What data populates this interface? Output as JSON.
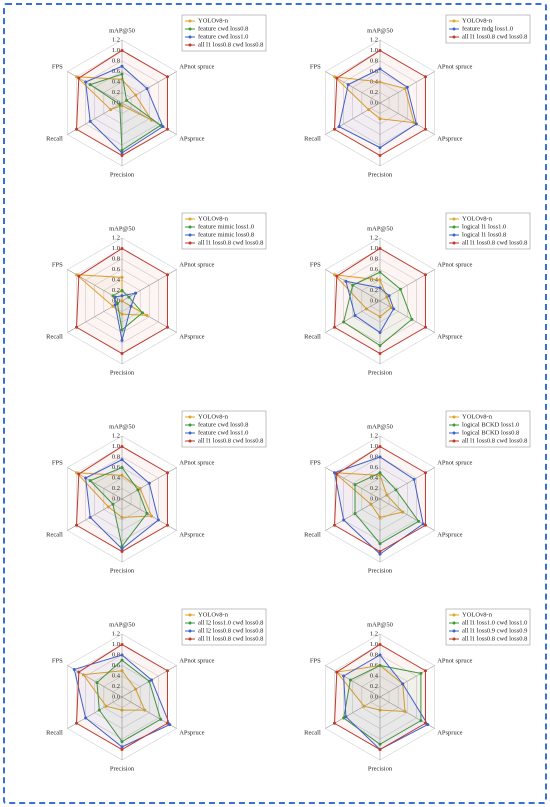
{
  "chart_data": [
    {
      "type": "radar",
      "categories": [
        "mAP@50",
        "APnot spruce",
        "APspruce",
        "Precision",
        "Recall",
        "FPS"
      ],
      "ylim": [
        0,
        1.2
      ],
      "yticks": [
        {
          "value": 0,
          "label": "0.0"
        },
        0.2,
        0.4,
        0.6,
        0.8,
        {
          "value": 1,
          "label": "1.0"
        },
        1.2
      ],
      "grid": true,
      "legend": "upper right",
      "series": [
        {
          "name": "YOLOv8-n",
          "color": "#e0a526",
          "values": [
            0.45,
            0.3,
            0.65,
            0.05,
            0.25,
            1.0
          ]
        },
        {
          "name": "feature cwd loss0.8",
          "color": "#3a9a3a",
          "values": [
            0.55,
            0.1,
            0.85,
            0.9,
            0.05,
            0.7
          ]
        },
        {
          "name": "feature cwd loss1.0",
          "color": "#3a62cf",
          "values": [
            0.7,
            0.55,
            0.9,
            0.95,
            0.7,
            0.8
          ]
        },
        {
          "name": "all l1 loss0.8 cwd loss0.8",
          "color": "#c0392b",
          "values": [
            1.0,
            1.0,
            1.0,
            1.0,
            1.0,
            0.95
          ]
        }
      ]
    },
    {
      "type": "radar",
      "categories": [
        "mAP@50",
        "APnot spruce",
        "APspruce",
        "Precision",
        "Recall",
        "FPS"
      ],
      "ylim": [
        0,
        1.2
      ],
      "yticks": [
        {
          "value": 0,
          "label": "0.0"
        },
        0.2,
        0.4,
        0.6,
        0.8,
        {
          "value": 1,
          "label": "1.0"
        },
        1.2
      ],
      "grid": true,
      "legend": "upper right",
      "series": [
        {
          "name": "YOLOv8-n",
          "color": "#e0a526",
          "values": [
            0.4,
            0.55,
            0.75,
            0.3,
            0.25,
            1.0
          ]
        },
        {
          "name": "feature mdg loss1.0",
          "color": "#3a62cf",
          "values": [
            0.65,
            0.6,
            0.8,
            0.85,
            0.9,
            0.7
          ]
        },
        {
          "name": "all l1 loss0.8 cwd loss0.8",
          "color": "#c0392b",
          "values": [
            1.0,
            1.0,
            1.0,
            1.0,
            1.0,
            0.95
          ]
        }
      ]
    },
    {
      "type": "radar",
      "categories": [
        "mAP@50",
        "APnot spruce",
        "APspruce",
        "Precision",
        "Recall",
        "FPS"
      ],
      "ylim": [
        0,
        1.2
      ],
      "yticks": [
        {
          "value": 0,
          "label": "0.0"
        },
        0.2,
        0.4,
        0.6,
        0.8,
        {
          "value": 1,
          "label": "1.0"
        },
        1.2
      ],
      "grid": true,
      "legend": "upper right",
      "series": [
        {
          "name": "YOLOv8-n",
          "color": "#e0a526",
          "values": [
            0.45,
            0.0,
            0.55,
            0.25,
            0.2,
            1.0
          ]
        },
        {
          "name": "feature mimic loss1.0",
          "color": "#3a9a3a",
          "values": [
            0.2,
            0.15,
            0.45,
            0.55,
            0.1,
            0.2
          ]
        },
        {
          "name": "feature mimic loss0.8",
          "color": "#3a62cf",
          "values": [
            0.1,
            0.3,
            0.2,
            0.75,
            0.15,
            0.15
          ]
        },
        {
          "name": "all l1 loss0.8 cwd loss0.8",
          "color": "#c0392b",
          "values": [
            1.0,
            1.0,
            1.0,
            1.0,
            1.0,
            0.95
          ]
        }
      ]
    },
    {
      "type": "radar",
      "categories": [
        "mAP@50",
        "APnot spruce",
        "APspruce",
        "Precision",
        "Recall",
        "FPS"
      ],
      "ylim": [
        0,
        1.2
      ],
      "yticks": [
        {
          "value": 0,
          "label": "0.0"
        },
        0.2,
        0.4,
        0.6,
        0.8,
        {
          "value": 1,
          "label": "1.0"
        },
        1.2
      ],
      "grid": true,
      "legend": "upper right",
      "series": [
        {
          "name": "YOLOv8-n",
          "color": "#e0a526",
          "values": [
            0.4,
            0.15,
            0.25,
            0.3,
            0.3,
            1.0
          ]
        },
        {
          "name": "logical l1 loss1.0",
          "color": "#3a9a3a",
          "values": [
            0.55,
            0.45,
            0.7,
            0.85,
            0.8,
            0.6
          ]
        },
        {
          "name": "logical l1 loss0.8",
          "color": "#3a62cf",
          "values": [
            0.25,
            0.2,
            0.3,
            0.6,
            0.55,
            0.75
          ]
        },
        {
          "name": "all l1 loss0.8 cwd loss0.8",
          "color": "#c0392b",
          "values": [
            1.0,
            1.0,
            1.0,
            1.0,
            1.0,
            0.95
          ]
        }
      ]
    },
    {
      "type": "radar",
      "categories": [
        "mAP@50",
        "APnot spruce",
        "APspruce",
        "Precision",
        "Recall",
        "FPS"
      ],
      "ylim": [
        0,
        1.2
      ],
      "yticks": [
        {
          "value": 0,
          "label": "0.0"
        },
        0.2,
        0.4,
        0.6,
        0.8,
        {
          "value": 1,
          "label": "1.0"
        },
        1.2
      ],
      "grid": true,
      "legend": "upper right",
      "series": [
        {
          "name": "YOLOv8-n",
          "color": "#e0a526",
          "values": [
            0.45,
            0.4,
            0.65,
            0.35,
            0.3,
            1.0
          ]
        },
        {
          "name": "feature cwd loss0.8",
          "color": "#3a9a3a",
          "values": [
            0.6,
            0.35,
            0.55,
            0.9,
            0.2,
            0.7
          ]
        },
        {
          "name": "feature cwd loss1.0",
          "color": "#3a62cf",
          "values": [
            0.75,
            0.6,
            0.8,
            0.95,
            0.7,
            0.8
          ]
        },
        {
          "name": "all l1 loss0.8 cwd loss0.8",
          "color": "#c0392b",
          "values": [
            1.0,
            1.0,
            1.0,
            1.0,
            1.0,
            0.95
          ]
        }
      ]
    },
    {
      "type": "radar",
      "categories": [
        "mAP@50",
        "APnot spruce",
        "APspruce",
        "Precision",
        "Recall",
        "FPS"
      ],
      "ylim": [
        0,
        1.2
      ],
      "yticks": [
        {
          "value": 0,
          "label": "0.0"
        },
        0.2,
        0.4,
        0.6,
        0.8,
        {
          "value": 1,
          "label": "1.0"
        },
        1.2
      ],
      "grid": true,
      "legend": "upper right",
      "series": [
        {
          "name": "YOLOv8-n",
          "color": "#e0a526",
          "values": [
            0.45,
            0.15,
            0.5,
            0.35,
            0.2,
            1.0
          ]
        },
        {
          "name": "logical BCKD loss1.0",
          "color": "#3a9a3a",
          "values": [
            0.5,
            0.35,
            0.85,
            0.85,
            0.55,
            0.55
          ]
        },
        {
          "name": "logical BCKD loss0.8",
          "color": "#3a62cf",
          "values": [
            0.8,
            0.75,
            0.95,
            1.05,
            0.8,
            1.0
          ]
        },
        {
          "name": "all l1 loss0.8 cwd loss0.8",
          "color": "#c0392b",
          "values": [
            1.0,
            1.0,
            1.0,
            1.0,
            1.0,
            0.95
          ]
        }
      ]
    },
    {
      "type": "radar",
      "categories": [
        "mAP@50",
        "APnot spruce",
        "APspruce",
        "Precision",
        "Recall",
        "FPS"
      ],
      "ylim": [
        0,
        1.2
      ],
      "yticks": [
        {
          "value": 0,
          "label": "0.0"
        },
        0.2,
        0.4,
        0.6,
        0.8,
        {
          "value": 1,
          "label": "1.0"
        },
        1.2
      ],
      "grid": true,
      "legend": "upper right",
      "series": [
        {
          "name": "YOLOv8-n",
          "color": "#e0a526",
          "values": [
            0.5,
            0.3,
            0.5,
            0.25,
            0.35,
            0.85
          ]
        },
        {
          "name": "all l2 loss1.0 cwd loss0.8",
          "color": "#3a9a3a",
          "values": [
            0.7,
            0.6,
            0.85,
            0.85,
            0.5,
            0.55
          ]
        },
        {
          "name": "all l2 loss0.8 cwd loss0.8",
          "color": "#3a62cf",
          "values": [
            0.8,
            0.65,
            1.05,
            0.95,
            0.8,
            1.05
          ]
        },
        {
          "name": "all l1 loss0.8 cwd loss0.8",
          "color": "#c0392b",
          "values": [
            1.0,
            1.0,
            1.0,
            1.0,
            1.0,
            0.95
          ]
        }
      ]
    },
    {
      "type": "radar",
      "categories": [
        "mAP@50",
        "APnot spruce",
        "APspruce",
        "Precision",
        "Recall",
        "FPS"
      ],
      "ylim": [
        0,
        1.2
      ],
      "yticks": [
        {
          "value": 0,
          "label": "0.0"
        },
        0.2,
        0.4,
        0.6,
        0.8,
        {
          "value": 1,
          "label": "1.0"
        },
        1.2
      ],
      "grid": true,
      "legend": "upper right",
      "series": [
        {
          "name": "YOLOv8-n",
          "color": "#e0a526",
          "values": [
            0.6,
            0.5,
            0.55,
            0.25,
            0.35,
            0.95
          ]
        },
        {
          "name": "all l1 loss1.0 cwd loss1.0",
          "color": "#3a9a3a",
          "values": [
            0.6,
            0.9,
            0.9,
            0.9,
            0.8,
            0.65
          ]
        },
        {
          "name": "all l1 loss0.9 cwd loss0.9",
          "color": "#3a62cf",
          "values": [
            0.8,
            0.5,
            1.05,
            1.0,
            0.75,
            0.8
          ]
        },
        {
          "name": "all l1 loss0.8 cwd loss0.8",
          "color": "#c0392b",
          "values": [
            1.0,
            1.0,
            1.0,
            1.0,
            1.0,
            0.95
          ]
        }
      ]
    }
  ]
}
